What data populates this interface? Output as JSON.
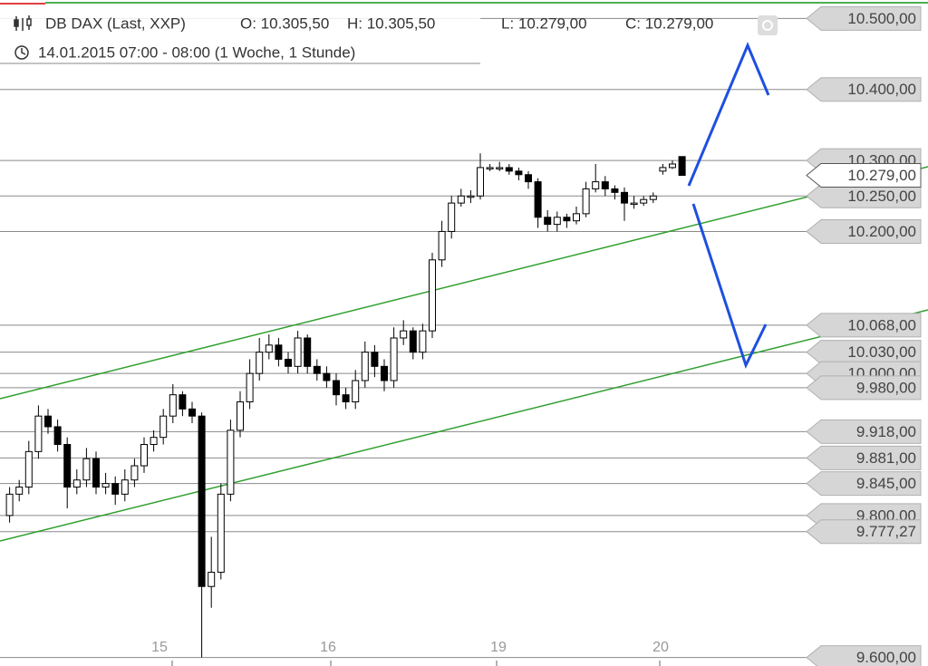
{
  "chart_data": {
    "type": "candlestick",
    "title": "DB DAX (Last, XXP)",
    "header_values": [
      "O: 10.305,50",
      "H: 10.305,50",
      "L: 10.279,00",
      "C: 10.279,00"
    ],
    "subtitle": "14.01.2015 07:00 - 08:00 (1 Woche, 1 Stunde)",
    "open": [
      9800,
      9830,
      9840,
      9890,
      9940,
      9925,
      9900,
      9840,
      9850,
      9880,
      9840,
      9845,
      9830,
      9850,
      9870,
      9900,
      9910,
      9940,
      9970,
      9950,
      9940,
      9700,
      9720,
      9830,
      9920,
      9960,
      10000,
      10030,
      10040,
      10020,
      10010,
      10050,
      10010,
      10000,
      9990,
      9970,
      9960,
      9990,
      10030,
      10010,
      9990,
      10050,
      10060,
      10030,
      10060,
      10160,
      10200,
      10240,
      10250,
      10250,
      10290,
      10290,
      10290,
      10285,
      10280,
      10270,
      10220,
      10210,
      10220,
      10215,
      10225,
      10260,
      10270,
      10260,
      10255,
      10240,
      10240,
      10245,
      10285,
      10290,
      10305.5
    ],
    "high": [
      9840,
      9850,
      9905,
      9955,
      9950,
      9935,
      9910,
      9865,
      9895,
      9890,
      9860,
      9855,
      9865,
      9880,
      9910,
      9920,
      9950,
      9985,
      9975,
      9960,
      9945,
      9770,
      9845,
      9935,
      9975,
      10020,
      10050,
      10055,
      10050,
      10030,
      10060,
      10055,
      10020,
      10010,
      10000,
      9980,
      10005,
      10045,
      10040,
      10020,
      10065,
      10075,
      10065,
      10070,
      10170,
      10215,
      10250,
      10260,
      10258,
      10310,
      10295,
      10298,
      10295,
      10290,
      10285,
      10275,
      10230,
      10228,
      10225,
      10235,
      10270,
      10295,
      10278,
      10265,
      10262,
      10250,
      10250,
      10255,
      10295,
      10300,
      10305.5
    ],
    "low": [
      9790,
      9820,
      9830,
      9880,
      9915,
      9890,
      9810,
      9830,
      9840,
      9830,
      9830,
      9815,
      9820,
      9840,
      9860,
      9890,
      9900,
      9930,
      9940,
      9930,
      9600,
      9670,
      9710,
      9820,
      9910,
      9950,
      9990,
      10020,
      10010,
      10000,
      10000,
      10000,
      9990,
      9980,
      9955,
      9950,
      9950,
      9980,
      9995,
      9975,
      9980,
      10040,
      10020,
      10020,
      10050,
      10150,
      10190,
      10235,
      10240,
      10245,
      10285,
      10285,
      10280,
      10272,
      10260,
      10205,
      10200,
      10200,
      10205,
      10210,
      10220,
      10255,
      10250,
      10245,
      10215,
      10232,
      10236,
      10240,
      10280,
      10288,
      10279
    ],
    "close": [
      9830,
      9840,
      9890,
      9940,
      9925,
      9900,
      9840,
      9850,
      9880,
      9840,
      9845,
      9830,
      9850,
      9870,
      9900,
      9910,
      9940,
      9970,
      9950,
      9940,
      9700,
      9720,
      9830,
      9920,
      9960,
      10000,
      10030,
      10040,
      10020,
      10010,
      10050,
      10010,
      10000,
      9990,
      9970,
      9960,
      9990,
      10030,
      10010,
      9990,
      10050,
      10060,
      10030,
      10060,
      10160,
      10200,
      10240,
      10250,
      10250,
      10290,
      10290,
      10290,
      10285,
      10280,
      10270,
      10220,
      10210,
      10220,
      10215,
      10225,
      10260,
      10270,
      10260,
      10255,
      10240,
      10240,
      10245,
      10250,
      10290,
      10295,
      10279
    ],
    "up_color": "#ffffff",
    "down_color": "#000000",
    "ylim": [
      9588,
      10526
    ],
    "yticks": [
      {
        "value": 10500,
        "label": "10.500,00"
      },
      {
        "value": 10400,
        "label": "10.400,00"
      },
      {
        "value": 10300,
        "label": "10.300,00"
      },
      {
        "value": 10250,
        "label": "10.250,00"
      },
      {
        "value": 10200,
        "label": "10.200,00"
      },
      {
        "value": 10068,
        "label": "10.068,00"
      },
      {
        "value": 10030,
        "label": "10.030,00"
      },
      {
        "value": 10000,
        "label": "10.000,00"
      },
      {
        "value": 9980,
        "label": "9.980,00"
      },
      {
        "value": 9918,
        "label": "9.918,00"
      },
      {
        "value": 9881,
        "label": "9.881,00"
      },
      {
        "value": 9845,
        "label": "9.845,00"
      },
      {
        "value": 9800,
        "label": "9.800,00"
      },
      {
        "value": 9777.27,
        "label": "9.777,27"
      },
      {
        "value": 9600,
        "label": "9.600,00"
      }
    ],
    "last_price": {
      "value": 10279,
      "label": "10.279,00"
    },
    "day_labels": [
      "15",
      "16",
      "19",
      "20"
    ]
  }
}
